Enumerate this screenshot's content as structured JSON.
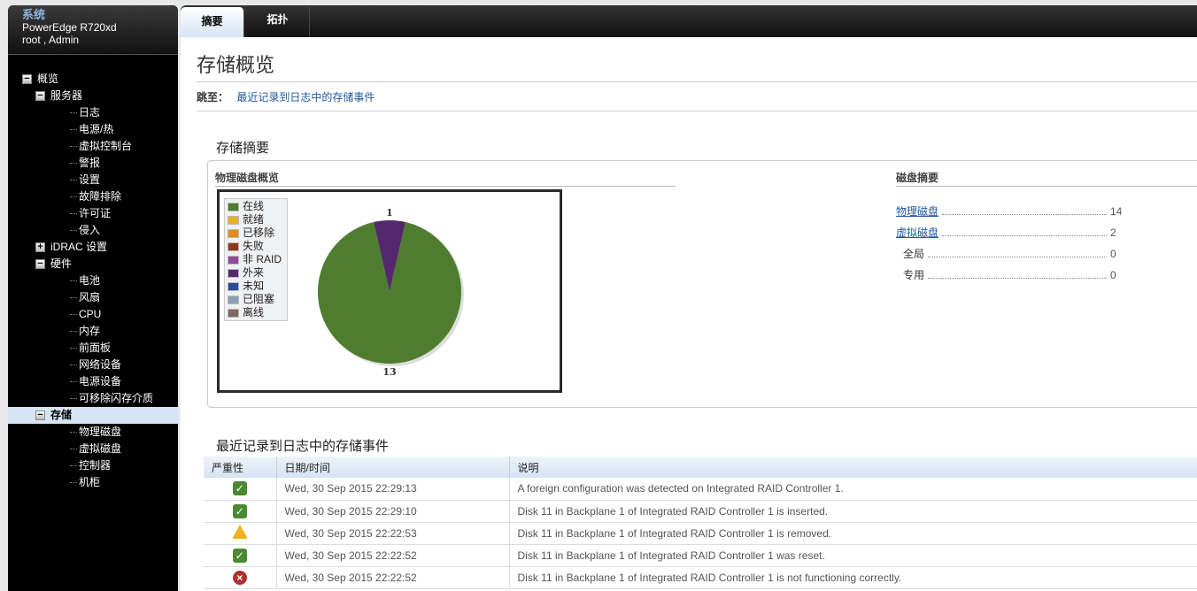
{
  "sidebar": {
    "system_label": "系统",
    "model": "PowerEdge R720xd",
    "user": "root , Admin",
    "tree": [
      {
        "label": "概览",
        "level": 0,
        "toggle": "−"
      },
      {
        "label": "服务器",
        "level": 1,
        "toggle": "−"
      },
      {
        "label": "日志",
        "level": 2
      },
      {
        "label": "电源/热",
        "level": 2
      },
      {
        "label": "虚拟控制台",
        "level": 2
      },
      {
        "label": "警报",
        "level": 2
      },
      {
        "label": "设置",
        "level": 2
      },
      {
        "label": "故障排除",
        "level": 2
      },
      {
        "label": "许可证",
        "level": 2
      },
      {
        "label": "侵入",
        "level": 2
      },
      {
        "label": "iDRAC 设置",
        "level": 1,
        "toggle": "+"
      },
      {
        "label": "硬件",
        "level": 1,
        "toggle": "−"
      },
      {
        "label": "电池",
        "level": 2
      },
      {
        "label": "风扇",
        "level": 2
      },
      {
        "label": "CPU",
        "level": 2
      },
      {
        "label": "内存",
        "level": 2
      },
      {
        "label": "前面板",
        "level": 2
      },
      {
        "label": "网络设备",
        "level": 2
      },
      {
        "label": "电源设备",
        "level": 2
      },
      {
        "label": "可移除闪存介质",
        "level": 2
      },
      {
        "label": "存储",
        "level": 1,
        "toggle": "−",
        "selected": true
      },
      {
        "label": "物理磁盘",
        "level": 2
      },
      {
        "label": "虚拟磁盘",
        "level": 2
      },
      {
        "label": "控制器",
        "level": 2
      },
      {
        "label": "机柜",
        "level": 2
      }
    ]
  },
  "tabs": [
    {
      "label": "摘要",
      "active": true
    },
    {
      "label": "拓扑"
    }
  ],
  "page": {
    "title": "存储概览",
    "jump_label": "跳至：",
    "jump_link": "最近记录到日志中的存储事件"
  },
  "summary": {
    "title": "存储摘要",
    "pd_overview_title": "物理磁盘概览",
    "disk_summary_title": "磁盘摘要",
    "disk_summary": [
      {
        "label": "物理磁盘",
        "value": "14",
        "link": true
      },
      {
        "label": "虚拟磁盘",
        "value": "2",
        "link": true
      },
      {
        "label": "全局",
        "value": "0"
      },
      {
        "label": "专用",
        "value": "0"
      }
    ]
  },
  "chart_data": {
    "type": "pie",
    "legend": [
      {
        "name": "在线",
        "color": "#4e7d2f"
      },
      {
        "name": "就绪",
        "color": "#e6b02a"
      },
      {
        "name": "已移除",
        "color": "#e08a20"
      },
      {
        "name": "失败",
        "color": "#8a3a1a"
      },
      {
        "name": "非 RAID",
        "color": "#8e4a98"
      },
      {
        "name": "外来",
        "color": "#55286e"
      },
      {
        "name": "未知",
        "color": "#2a4a9a"
      },
      {
        "name": "已阻塞",
        "color": "#8aa0b8"
      },
      {
        "name": "离线",
        "color": "#7a6a60"
      }
    ],
    "slices": [
      {
        "name": "外来",
        "value": 1
      },
      {
        "name": "在线",
        "value": 13
      }
    ],
    "legend_position": "top-left"
  },
  "events": {
    "title": "最近记录到日志中的存储事件",
    "columns": [
      "严重性",
      "日期/时间",
      "说明"
    ],
    "rows": [
      {
        "severity": "ok",
        "datetime": "Wed, 30 Sep 2015 22:29:13",
        "description": "A foreign configuration was detected on Integrated RAID Controller 1."
      },
      {
        "severity": "ok",
        "datetime": "Wed, 30 Sep 2015 22:29:10",
        "description": "Disk 11 in Backplane 1 of Integrated RAID Controller 1 is inserted."
      },
      {
        "severity": "warning",
        "datetime": "Wed, 30 Sep 2015 22:22:53",
        "description": "Disk 11 in Backplane 1 of Integrated RAID Controller 1 is removed."
      },
      {
        "severity": "ok",
        "datetime": "Wed, 30 Sep 2015 22:22:52",
        "description": "Disk 11 in Backplane 1 of Integrated RAID Controller 1 was reset."
      },
      {
        "severity": "error",
        "datetime": "Wed, 30 Sep 2015 22:22:52",
        "description": "Disk 11 in Backplane 1 of Integrated RAID Controller 1 is not functioning correctly."
      }
    ]
  }
}
